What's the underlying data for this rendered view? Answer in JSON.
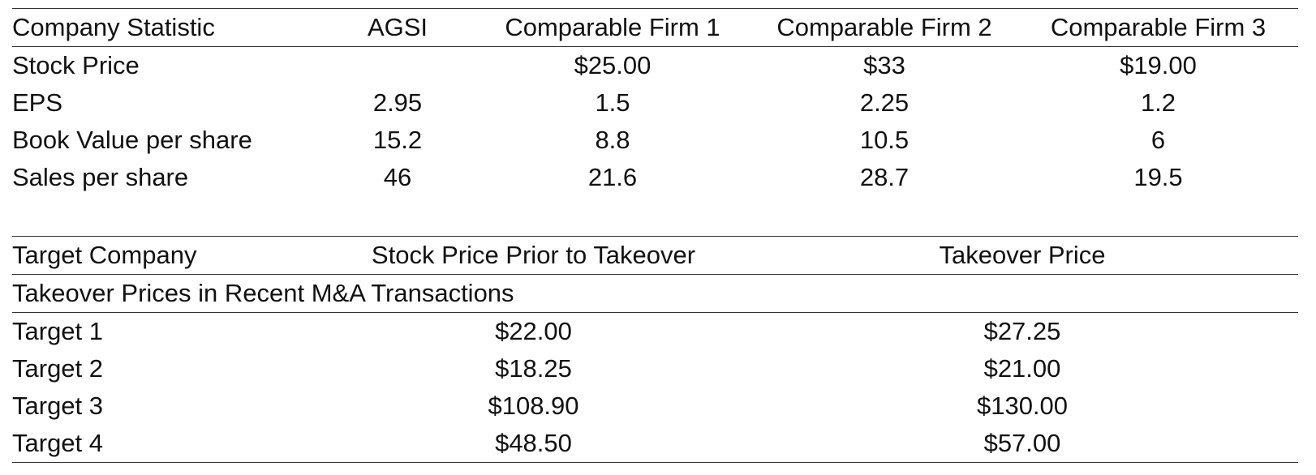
{
  "company_stats": {
    "headers": [
      "Company Statistic",
      "AGSI",
      "Comparable Firm 1",
      "Comparable Firm 2",
      "Comparable Firm 3"
    ],
    "rows": [
      {
        "label": "Stock Price",
        "agsi": "",
        "firm1": "$25.00",
        "firm2": "$33",
        "firm3": "$19.00"
      },
      {
        "label": "EPS",
        "agsi": "2.95",
        "firm1": "1.5",
        "firm2": "2.25",
        "firm3": "1.2"
      },
      {
        "label": "Book Value per share",
        "agsi": "15.2",
        "firm1": "8.8",
        "firm2": "10.5",
        "firm3": "6"
      },
      {
        "label": "Sales per share",
        "agsi": "46",
        "firm1": "21.6",
        "firm2": "28.7",
        "firm3": "19.5"
      }
    ]
  },
  "takeovers": {
    "title": "Takeover Prices in Recent M&A Transactions",
    "headers": [
      "Target Company",
      "Stock Price Prior to Takeover",
      "Takeover Price"
    ],
    "rows": [
      {
        "target": "Target 1",
        "prior": "$22.00",
        "takeover": "$27.25"
      },
      {
        "target": "Target 2",
        "prior": "$18.25",
        "takeover": "$21.00"
      },
      {
        "target": "Target 3",
        "prior": "$108.90",
        "takeover": "$130.00"
      },
      {
        "target": "Target 4",
        "prior": "$48.50",
        "takeover": "$57.00"
      }
    ]
  }
}
